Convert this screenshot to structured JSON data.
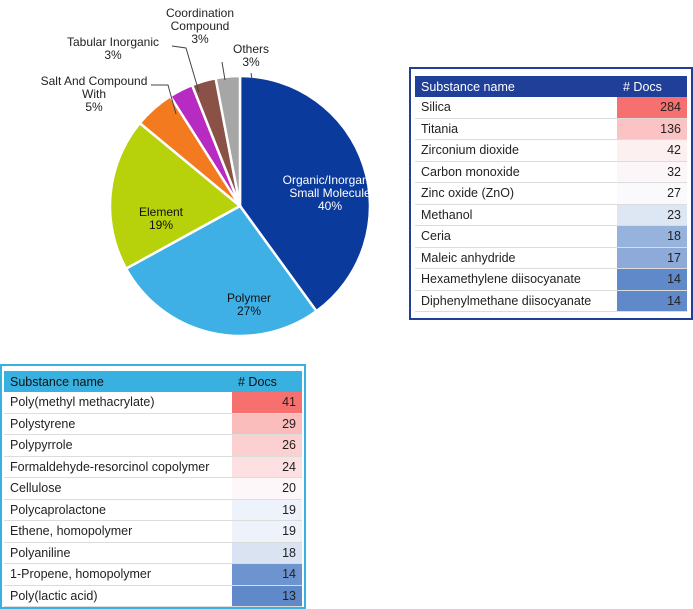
{
  "colors": {
    "organic": "#0a3a9c",
    "polymer": "#3fb0e6",
    "element": "#b7d10a",
    "salt": "#f47a20",
    "tabular": "#b72bc3",
    "coordination": "#8a5146",
    "others": "#a6a6a6"
  },
  "chart_data": {
    "type": "pie",
    "slices": [
      {
        "key": "organic",
        "lines": [
          "Organic/Inorganic",
          "Small Molecule"
        ],
        "pct_label": "40%",
        "value": 40
      },
      {
        "key": "polymer",
        "lines": [
          "Polymer"
        ],
        "pct_label": "27%",
        "value": 27
      },
      {
        "key": "element",
        "lines": [
          "Element"
        ],
        "pct_label": "19%",
        "value": 19
      },
      {
        "key": "salt",
        "lines": [
          "Salt And Compound",
          "With"
        ],
        "pct_label": "5%",
        "value": 5
      },
      {
        "key": "tabular",
        "lines": [
          "Tabular Inorganic"
        ],
        "pct_label": "3%",
        "value": 3
      },
      {
        "key": "coordination",
        "lines": [
          "Coordination",
          "Compound"
        ],
        "pct_label": "3%",
        "value": 3
      },
      {
        "key": "others",
        "lines": [
          "Others"
        ],
        "pct_label": "3%",
        "value": 3
      }
    ]
  },
  "table_right": {
    "headers": [
      "Substance name",
      "# Docs"
    ],
    "rows": [
      {
        "name": "Silica",
        "docs": 284,
        "color": "#f77070"
      },
      {
        "name": "Titania",
        "docs": 136,
        "color": "#fbc3c4"
      },
      {
        "name": "Zirconium dioxide",
        "docs": 42,
        "color": "#fdf0f1"
      },
      {
        "name": "Carbon monoxide",
        "docs": 32,
        "color": "#fdf6f8"
      },
      {
        "name": "Zinc oxide (ZnO)",
        "docs": 27,
        "color": "#fafafd"
      },
      {
        "name": "Methanol",
        "docs": 23,
        "color": "#dde6f3"
      },
      {
        "name": "Ceria",
        "docs": 18,
        "color": "#97b3dc"
      },
      {
        "name": "Maleic anhydride",
        "docs": 17,
        "color": "#8eaad8"
      },
      {
        "name": "Hexamethylene diisocyanate",
        "docs": 14,
        "color": "#5f89c9"
      },
      {
        "name": "Diphenylmethane diisocyanate",
        "docs": 14,
        "color": "#5f89c9"
      }
    ]
  },
  "table_left": {
    "headers": [
      "Substance name",
      "# Docs"
    ],
    "rows": [
      {
        "name": "Poly(methyl methacrylate)",
        "docs": 41,
        "color": "#f77070"
      },
      {
        "name": "Polystyrene",
        "docs": 29,
        "color": "#fbbcbc"
      },
      {
        "name": "Polypyrrole",
        "docs": 26,
        "color": "#fcd0d1"
      },
      {
        "name": "Formaldehyde-resorcinol copolymer",
        "docs": 24,
        "color": "#fde0e1"
      },
      {
        "name": "Cellulose",
        "docs": 20,
        "color": "#fdf7f9"
      },
      {
        "name": "Polycaprolactone",
        "docs": 19,
        "color": "#eef2fa"
      },
      {
        "name": "Ethene, homopolymer",
        "docs": 19,
        "color": "#eef2fa"
      },
      {
        "name": "Polyaniline",
        "docs": 18,
        "color": "#d9e3f2"
      },
      {
        "name": "1-Propene, homopolymer",
        "docs": 14,
        "color": "#6e94cf"
      },
      {
        "name": "Poly(lactic acid)",
        "docs": 13,
        "color": "#5f89c9"
      }
    ]
  }
}
